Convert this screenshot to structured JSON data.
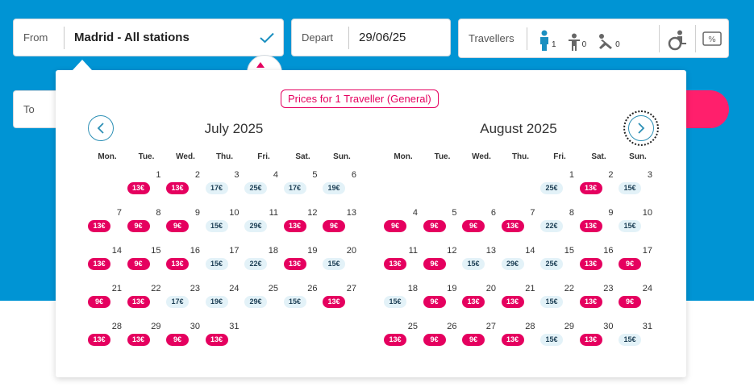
{
  "search": {
    "from_label": "From",
    "from_value": "Madrid - All stations",
    "depart_label": "Depart",
    "depart_value": "29/06/25",
    "to_label": "To",
    "travellers_label": "Travellers",
    "travellers": [
      {
        "type": "adult",
        "icon": "adult-icon",
        "count": "1"
      },
      {
        "type": "child",
        "icon": "child-icon",
        "count": "0"
      },
      {
        "type": "infant",
        "icon": "infant-icon",
        "count": "0"
      }
    ]
  },
  "calendar": {
    "price_note": "Prices for 1 Traveller (General)",
    "weekdays": [
      "Mon.",
      "Tue.",
      "Wed.",
      "Thu.",
      "Fri.",
      "Sat.",
      "Sun."
    ],
    "months": [
      {
        "title": "July 2025",
        "start_weekday": 1,
        "days": [
          {
            "d": "1",
            "p": "13€",
            "t": "hot"
          },
          {
            "d": "2",
            "p": "13€",
            "t": "hot"
          },
          {
            "d": "3",
            "p": "17€",
            "t": "cool"
          },
          {
            "d": "4",
            "p": "25€",
            "t": "cool"
          },
          {
            "d": "5",
            "p": "17€",
            "t": "cool"
          },
          {
            "d": "6",
            "p": "19€",
            "t": "cool"
          },
          {
            "d": "7",
            "p": "13€",
            "t": "hot"
          },
          {
            "d": "8",
            "p": "9€",
            "t": "hot"
          },
          {
            "d": "9",
            "p": "9€",
            "t": "hot"
          },
          {
            "d": "10",
            "p": "15€",
            "t": "cool"
          },
          {
            "d": "11",
            "p": "29€",
            "t": "cool"
          },
          {
            "d": "12",
            "p": "13€",
            "t": "hot"
          },
          {
            "d": "13",
            "p": "9€",
            "t": "hot"
          },
          {
            "d": "14",
            "p": "13€",
            "t": "hot"
          },
          {
            "d": "15",
            "p": "9€",
            "t": "hot"
          },
          {
            "d": "16",
            "p": "13€",
            "t": "hot"
          },
          {
            "d": "17",
            "p": "15€",
            "t": "cool"
          },
          {
            "d": "18",
            "p": "22€",
            "t": "cool"
          },
          {
            "d": "19",
            "p": "13€",
            "t": "hot"
          },
          {
            "d": "20",
            "p": "15€",
            "t": "cool"
          },
          {
            "d": "21",
            "p": "9€",
            "t": "hot"
          },
          {
            "d": "22",
            "p": "13€",
            "t": "hot"
          },
          {
            "d": "23",
            "p": "17€",
            "t": "cool"
          },
          {
            "d": "24",
            "p": "19€",
            "t": "cool"
          },
          {
            "d": "25",
            "p": "29€",
            "t": "cool"
          },
          {
            "d": "26",
            "p": "15€",
            "t": "cool"
          },
          {
            "d": "27",
            "p": "13€",
            "t": "hot"
          },
          {
            "d": "28",
            "p": "13€",
            "t": "hot"
          },
          {
            "d": "29",
            "p": "13€",
            "t": "hot"
          },
          {
            "d": "30",
            "p": "9€",
            "t": "hot"
          },
          {
            "d": "31",
            "p": "13€",
            "t": "hot"
          }
        ]
      },
      {
        "title": "August 2025",
        "start_weekday": 4,
        "days": [
          {
            "d": "1",
            "p": "25€",
            "t": "cool"
          },
          {
            "d": "2",
            "p": "13€",
            "t": "hot"
          },
          {
            "d": "3",
            "p": "15€",
            "t": "cool"
          },
          {
            "d": "4",
            "p": "9€",
            "t": "hot"
          },
          {
            "d": "5",
            "p": "9€",
            "t": "hot"
          },
          {
            "d": "6",
            "p": "9€",
            "t": "hot"
          },
          {
            "d": "7",
            "p": "13€",
            "t": "hot"
          },
          {
            "d": "8",
            "p": "22€",
            "t": "cool"
          },
          {
            "d": "9",
            "p": "13€",
            "t": "hot"
          },
          {
            "d": "10",
            "p": "15€",
            "t": "cool"
          },
          {
            "d": "11",
            "p": "13€",
            "t": "hot"
          },
          {
            "d": "12",
            "p": "9€",
            "t": "hot"
          },
          {
            "d": "13",
            "p": "15€",
            "t": "cool"
          },
          {
            "d": "14",
            "p": "29€",
            "t": "cool"
          },
          {
            "d": "15",
            "p": "25€",
            "t": "cool"
          },
          {
            "d": "16",
            "p": "13€",
            "t": "hot"
          },
          {
            "d": "17",
            "p": "9€",
            "t": "hot"
          },
          {
            "d": "18",
            "p": "15€",
            "t": "cool"
          },
          {
            "d": "19",
            "p": "9€",
            "t": "hot"
          },
          {
            "d": "20",
            "p": "13€",
            "t": "hot"
          },
          {
            "d": "21",
            "p": "13€",
            "t": "hot"
          },
          {
            "d": "22",
            "p": "15€",
            "t": "cool"
          },
          {
            "d": "23",
            "p": "13€",
            "t": "hot"
          },
          {
            "d": "24",
            "p": "9€",
            "t": "hot"
          },
          {
            "d": "25",
            "p": "13€",
            "t": "hot"
          },
          {
            "d": "26",
            "p": "9€",
            "t": "hot"
          },
          {
            "d": "27",
            "p": "9€",
            "t": "hot"
          },
          {
            "d": "28",
            "p": "13€",
            "t": "hot"
          },
          {
            "d": "29",
            "p": "15€",
            "t": "cool"
          },
          {
            "d": "30",
            "p": "13€",
            "t": "hot"
          },
          {
            "d": "31",
            "p": "15€",
            "t": "cool"
          }
        ]
      }
    ]
  },
  "colors": {
    "brand_blue": "#0094d4",
    "accent_pink": "#e5005f",
    "cta_pink": "#ff1f6c",
    "cool_price_bg": "#e3f2f8"
  }
}
